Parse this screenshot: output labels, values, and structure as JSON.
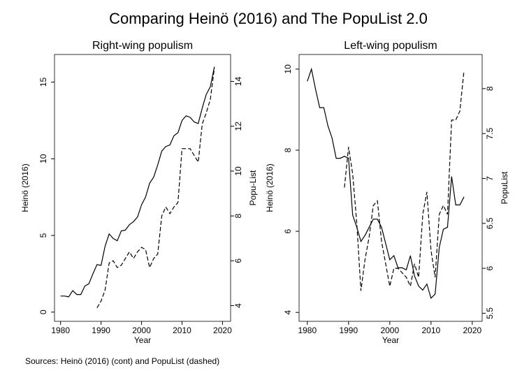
{
  "title": "Comparing Heinö (2016) and The PopuList 2.0",
  "note": "Sources: Heinö (2016) (cont) and PopuList (dashed)",
  "chart_data": [
    {
      "type": "line",
      "title": "Right-wing populism",
      "xlabel": "Year",
      "ylabel": "Heinö (2016)",
      "y2label": "Popu-List",
      "x": [
        1980,
        1981,
        1982,
        1983,
        1984,
        1985,
        1986,
        1987,
        1988,
        1989,
        1990,
        1991,
        1992,
        1993,
        1994,
        1995,
        1996,
        1997,
        1998,
        1999,
        2000,
        2001,
        2002,
        2003,
        2004,
        2005,
        2006,
        2007,
        2008,
        2009,
        2010,
        2011,
        2012,
        2013,
        2014,
        2015,
        2016,
        2017,
        2018
      ],
      "series": [
        {
          "color": "#000000",
          "dash": "solid",
          "values": [
            1.05,
            1.05,
            1.0,
            1.4,
            1.15,
            1.15,
            1.7,
            1.85,
            2.5,
            3.1,
            3.05,
            4.3,
            5.1,
            4.8,
            4.65,
            5.3,
            5.35,
            5.7,
            5.9,
            6.2,
            7.0,
            7.5,
            8.4,
            8.8,
            9.6,
            10.5,
            10.8,
            10.9,
            11.5,
            11.7,
            12.5,
            12.8,
            12.7,
            12.4,
            12.3,
            13.3,
            14.2,
            14.7,
            16.0
          ]
        },
        {
          "color": "#000000",
          "dash": "dashed",
          "axis": "y2",
          "values": [
            null,
            null,
            null,
            null,
            null,
            null,
            null,
            null,
            null,
            3.9,
            4.2,
            4.7,
            5.9,
            6.0,
            5.7,
            5.8,
            6.1,
            6.4,
            6.1,
            6.4,
            6.6,
            6.5,
            5.7,
            6.1,
            6.3,
            8.0,
            8.4,
            8.1,
            8.4,
            8.6,
            11.0,
            11.0,
            11.0,
            10.7,
            10.4,
            12.1,
            12.6,
            13.2,
            14.6
          ]
        }
      ],
      "xlim": [
        1978.5,
        2022
      ],
      "xticks": [
        1980,
        1990,
        2000,
        2010,
        2020
      ],
      "ylim": [
        -0.6,
        16.8
      ],
      "yticks": [
        0,
        5,
        10,
        15
      ],
      "y2lim": [
        3.3,
        15.2
      ],
      "y2ticks": [
        4,
        6,
        8,
        10,
        12,
        14
      ]
    },
    {
      "type": "line",
      "title": "Left-wing populism",
      "xlabel": "Year",
      "ylabel": "Heinö (2016)",
      "y2label": "PopuList",
      "x": [
        1980,
        1981,
        1982,
        1983,
        1984,
        1985,
        1986,
        1987,
        1988,
        1989,
        1990,
        1991,
        1992,
        1993,
        1994,
        1995,
        1996,
        1997,
        1998,
        1999,
        2000,
        2001,
        2002,
        2003,
        2004,
        2005,
        2006,
        2007,
        2008,
        2009,
        2010,
        2011,
        2012,
        2013,
        2014,
        2015,
        2016,
        2017,
        2018
      ],
      "series": [
        {
          "color": "#000000",
          "dash": "solid",
          "values": [
            9.7,
            10.0,
            9.5,
            9.05,
            9.05,
            8.6,
            8.3,
            7.8,
            7.8,
            7.85,
            7.8,
            6.4,
            6.1,
            5.75,
            5.9,
            6.1,
            6.3,
            6.3,
            6.1,
            5.7,
            5.3,
            5.4,
            5.1,
            5.1,
            5.05,
            5.4,
            4.9,
            4.65,
            4.55,
            4.7,
            4.35,
            4.45,
            5.6,
            6.05,
            6.1,
            7.35,
            6.65,
            6.65,
            6.85
          ]
        },
        {
          "color": "#000000",
          "dash": "dashed",
          "axis": "y2",
          "values": [
            null,
            null,
            null,
            null,
            null,
            null,
            null,
            null,
            null,
            6.9,
            7.35,
            7.05,
            6.5,
            5.75,
            6.1,
            6.35,
            6.7,
            6.75,
            6.3,
            6.05,
            5.8,
            6.0,
            6.0,
            5.95,
            5.9,
            5.8,
            6.05,
            5.9,
            6.6,
            6.85,
            6.2,
            5.9,
            6.6,
            6.7,
            6.6,
            7.65,
            7.65,
            7.75,
            8.2
          ]
        }
      ],
      "xlim": [
        1978,
        2022.4
      ],
      "xticks": [
        1980,
        1990,
        2000,
        2010,
        2020
      ],
      "ylim": [
        3.78,
        10.36
      ],
      "yticks": [
        4,
        6,
        8,
        10
      ],
      "y2lim": [
        5.41,
        8.38
      ],
      "y2ticks": [
        5.5,
        6,
        6.5,
        7,
        7.5,
        8
      ]
    }
  ]
}
